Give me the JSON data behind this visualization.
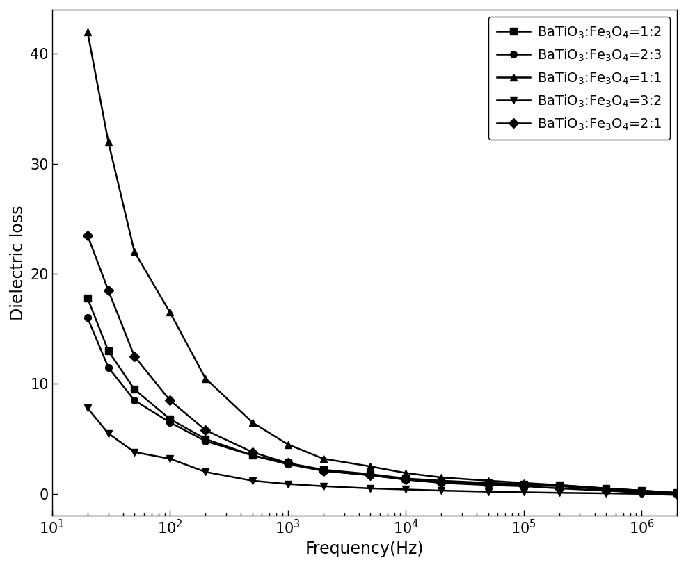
{
  "xlabel": "Frequency(Hz)",
  "ylabel": "Dielectric loss",
  "xlim": [
    10,
    2000000
  ],
  "ylim": [
    -2,
    44
  ],
  "yticks": [
    0,
    10,
    20,
    30,
    40
  ],
  "background_color": "#ffffff",
  "series": [
    {
      "label": "BaTiO$_3$:Fe$_3$O$_4$=1:2",
      "marker": "s",
      "x": [
        20,
        30,
        50,
        100,
        200,
        500,
        1000,
        2000,
        5000,
        10000,
        20000,
        50000,
        100000,
        200000,
        500000,
        1000000,
        2000000
      ],
      "y": [
        17.8,
        13.0,
        9.5,
        6.8,
        5.0,
        3.5,
        2.8,
        2.2,
        1.8,
        1.4,
        1.2,
        1.0,
        0.9,
        0.8,
        0.5,
        0.3,
        0.1
      ]
    },
    {
      "label": "BaTiO$_3$:Fe$_3$O$_4$=2:3",
      "marker": "o",
      "x": [
        20,
        30,
        50,
        100,
        200,
        500,
        1000,
        2000,
        5000,
        10000,
        20000,
        50000,
        100000,
        200000,
        500000,
        1000000,
        2000000
      ],
      "y": [
        16.0,
        11.5,
        8.5,
        6.5,
        4.8,
        3.5,
        2.7,
        2.1,
        1.7,
        1.3,
        1.1,
        0.9,
        0.8,
        0.7,
        0.4,
        0.2,
        0.05
      ]
    },
    {
      "label": "BaTiO$_3$:Fe$_3$O$_4$=1:1",
      "marker": "^",
      "x": [
        20,
        30,
        50,
        100,
        200,
        500,
        1000,
        2000,
        5000,
        10000,
        20000,
        50000,
        100000,
        200000,
        500000,
        1000000,
        2000000
      ],
      "y": [
        42.0,
        32.0,
        22.0,
        16.5,
        10.5,
        6.5,
        4.5,
        3.2,
        2.5,
        1.9,
        1.5,
        1.2,
        1.0,
        0.8,
        0.5,
        0.3,
        0.1
      ]
    },
    {
      "label": "BaTiO$_3$:Fe$_3$O$_4$=3:2",
      "marker": "v",
      "x": [
        20,
        30,
        50,
        100,
        200,
        500,
        1000,
        2000,
        5000,
        10000,
        20000,
        50000,
        100000,
        200000,
        500000,
        1000000,
        2000000
      ],
      "y": [
        7.8,
        5.5,
        3.8,
        3.2,
        2.0,
        1.2,
        0.9,
        0.7,
        0.5,
        0.4,
        0.3,
        0.2,
        0.15,
        0.1,
        0.05,
        0.0,
        -0.1
      ]
    },
    {
      "label": "BaTiO$_3$:Fe$_3$O$_4$=2:1",
      "marker": "D",
      "x": [
        20,
        30,
        50,
        100,
        200,
        500,
        1000,
        2000,
        5000,
        10000,
        20000,
        50000,
        100000,
        200000,
        500000,
        1000000,
        2000000
      ],
      "y": [
        23.5,
        18.5,
        12.5,
        8.5,
        5.8,
        3.8,
        2.8,
        2.1,
        1.7,
        1.3,
        1.0,
        0.8,
        0.7,
        0.5,
        0.3,
        0.1,
        0.0
      ]
    }
  ],
  "line_color": "#000000",
  "line_width": 1.8,
  "marker_size": 7,
  "legend_fontsize": 14,
  "axis_fontsize": 17,
  "tick_fontsize": 15
}
